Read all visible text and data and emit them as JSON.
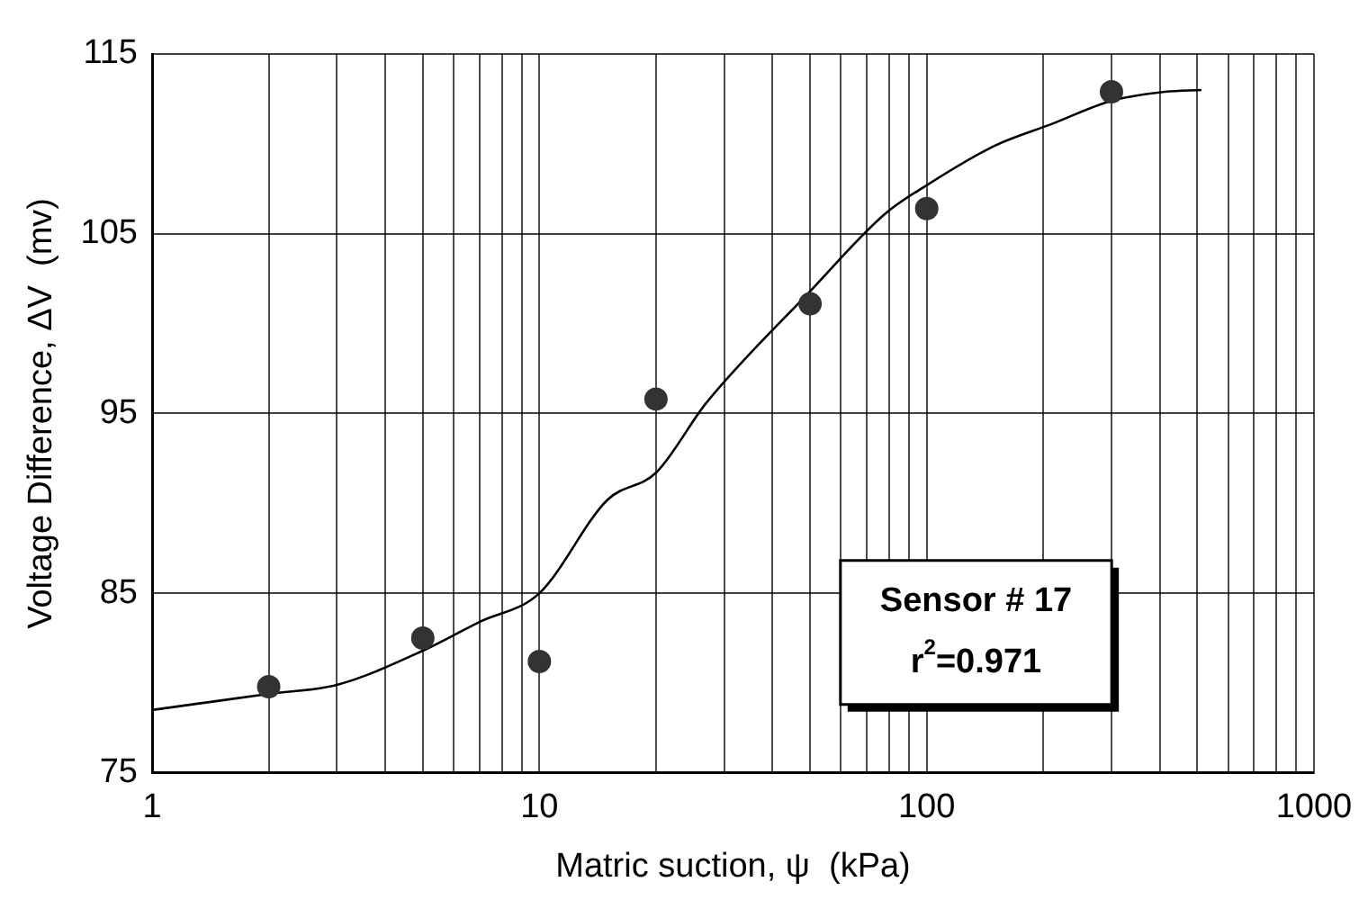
{
  "chart_data": {
    "type": "scatter",
    "xlabel": "Matric suction, ψ  (kPa)",
    "ylabel": "Voltage Difference, ΔV  (mv)",
    "log": "x",
    "grid": true,
    "legend": false,
    "marker": "circle",
    "xlim": [
      1,
      1000
    ],
    "ylim": [
      75,
      115
    ],
    "xticks": [
      1,
      {
        "value": 2,
        "label": null
      },
      {
        "value": 3,
        "label": null
      },
      {
        "value": 4,
        "label": null
      },
      {
        "value": 5,
        "label": null
      },
      {
        "value": 6,
        "label": null
      },
      {
        "value": 7,
        "label": null
      },
      {
        "value": 8,
        "label": null
      },
      {
        "value": 9,
        "label": null
      },
      10,
      {
        "value": 20,
        "label": null
      },
      {
        "value": 30,
        "label": null
      },
      {
        "value": 40,
        "label": null
      },
      {
        "value": 50,
        "label": null
      },
      {
        "value": 60,
        "label": null
      },
      {
        "value": 70,
        "label": null
      },
      {
        "value": 80,
        "label": null
      },
      {
        "value": 90,
        "label": null
      },
      100,
      {
        "value": 200,
        "label": null
      },
      {
        "value": 300,
        "label": null
      },
      {
        "value": 400,
        "label": null
      },
      {
        "value": 500,
        "label": null
      },
      {
        "value": 600,
        "label": null
      },
      {
        "value": 700,
        "label": null
      },
      {
        "value": 800,
        "label": null
      },
      {
        "value": 900,
        "label": null
      },
      1000
    ],
    "yticks": [
      75,
      85,
      95,
      105,
      115
    ],
    "series": [
      {
        "type": "scatter",
        "color": "#333333",
        "x": [
          2,
          5,
          10,
          20,
          50,
          100,
          300
        ],
        "values": [
          79.8,
          82.5,
          81.2,
          95.8,
          101.1,
          106.4,
          112.9
        ]
      },
      {
        "type": "line",
        "marker": "none",
        "color": "#000000",
        "x": [
          1,
          2,
          3,
          5,
          7,
          10,
          15,
          20,
          27,
          50,
          78,
          100,
          150,
          210,
          300,
          412,
          512
        ],
        "values": [
          78.5,
          79.4,
          79.9,
          81.8,
          83.4,
          85.0,
          90.2,
          91.7,
          95.6,
          101.8,
          106.1,
          107.7,
          109.9,
          111.1,
          112.4,
          112.9,
          113.0
        ]
      }
    ],
    "annotations": [
      "Sensor # 17",
      "r$^{2}$=0.971"
    ]
  }
}
